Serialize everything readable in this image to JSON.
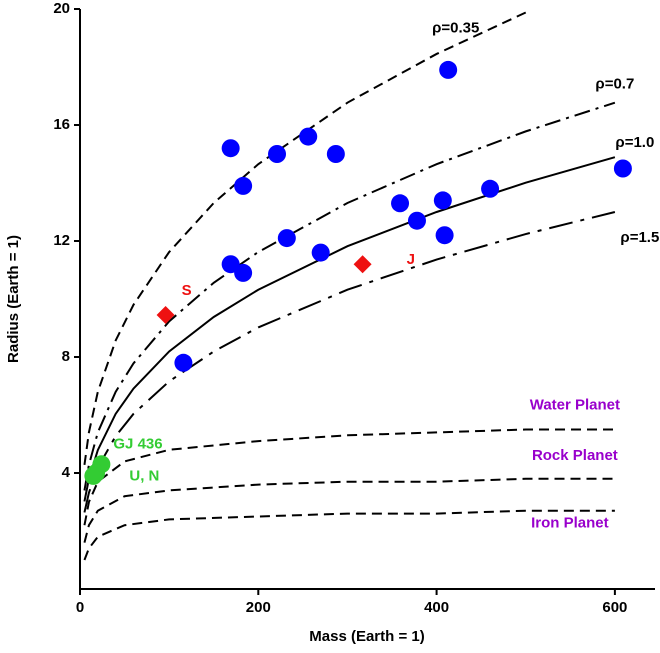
{
  "chart_data": {
    "type": "scatter",
    "xlabel": "Mass (Earth = 1)",
    "ylabel": "Radius (Earth = 1)",
    "xlim": [
      0,
      645
    ],
    "ylim": [
      0,
      20
    ],
    "xticks": [
      0,
      200,
      400,
      600
    ],
    "yticks": [
      4,
      8,
      12,
      16,
      20
    ],
    "lines": [
      {
        "name": "ρ=0.35",
        "color": "#000000",
        "label_color": "#000000",
        "style": "dashed",
        "x": [
          5,
          10,
          20,
          40,
          60,
          100,
          150,
          200,
          300,
          400,
          500
        ],
        "values": [
          4.28,
          5.4,
          6.8,
          8.57,
          9.8,
          11.62,
          13.31,
          14.65,
          16.77,
          18.45,
          19.88
        ]
      },
      {
        "name": "ρ=0.7",
        "color": "#000000",
        "label_color": "#000000",
        "style": "dashdot",
        "x": [
          5,
          10,
          20,
          40,
          60,
          100,
          150,
          200,
          300,
          400,
          500,
          600
        ],
        "values": [
          3.4,
          4.28,
          5.4,
          6.8,
          7.78,
          9.23,
          10.56,
          11.62,
          13.31,
          14.65,
          15.78,
          16.77
        ]
      },
      {
        "name": "ρ=1.0",
        "color": "#000000",
        "label_color": "#000000",
        "style": "solid",
        "x": [
          5,
          10,
          20,
          40,
          60,
          100,
          150,
          200,
          300,
          400,
          500,
          600
        ],
        "values": [
          3.02,
          3.8,
          4.79,
          6.04,
          6.91,
          8.19,
          9.38,
          10.32,
          11.82,
          13.0,
          14.01,
          14.89
        ]
      },
      {
        "name": "ρ=1.5",
        "color": "#000000",
        "label_color": "#000000",
        "style": "longdashdot",
        "x": [
          5,
          10,
          20,
          40,
          60,
          100,
          150,
          200,
          300,
          400,
          500,
          600
        ],
        "values": [
          2.64,
          3.32,
          4.19,
          5.27,
          6.04,
          7.16,
          8.19,
          9.02,
          10.32,
          11.36,
          12.24,
          13.0
        ]
      },
      {
        "name": "Water Planet",
        "color": "#000000",
        "label_color": "#9900cc",
        "style": "dashed",
        "x": [
          5,
          10,
          20,
          50,
          100,
          200,
          300,
          400,
          500,
          600
        ],
        "values": [
          2.2,
          3.0,
          3.7,
          4.4,
          4.8,
          5.1,
          5.3,
          5.4,
          5.5,
          5.5
        ]
      },
      {
        "name": "Rock Planet",
        "color": "#000000",
        "label_color": "#9900cc",
        "style": "dashed",
        "x": [
          5,
          10,
          20,
          50,
          100,
          200,
          300,
          400,
          500,
          600
        ],
        "values": [
          1.6,
          2.2,
          2.7,
          3.2,
          3.4,
          3.6,
          3.7,
          3.7,
          3.8,
          3.8
        ]
      },
      {
        "name": "Iron Planet",
        "color": "#000000",
        "label_color": "#9900cc",
        "style": "dashed",
        "x": [
          5,
          10,
          20,
          50,
          100,
          200,
          300,
          400,
          500,
          600
        ],
        "values": [
          1.0,
          1.4,
          1.8,
          2.2,
          2.4,
          2.5,
          2.6,
          2.6,
          2.7,
          2.7
        ]
      }
    ],
    "series": [
      {
        "color": "#0000ff",
        "marker": "circle",
        "x": [
          413,
          169,
          256,
          221,
          287,
          183,
          609,
          460,
          359,
          407,
          378,
          409,
          232,
          270,
          169,
          183,
          116
        ],
        "values": [
          17.9,
          15.2,
          15.6,
          15.0,
          15.0,
          13.9,
          14.5,
          13.8,
          13.3,
          13.4,
          12.7,
          12.2,
          12.1,
          11.6,
          11.2,
          10.9,
          7.8
        ]
      },
      {
        "color": "#ee1111",
        "marker": "diamond",
        "x": [
          96,
          317
        ],
        "values": [
          9.45,
          11.2
        ],
        "labels": [
          "S",
          "J"
        ]
      },
      {
        "color": "#33cc33",
        "marker": "circle",
        "x": [
          24,
          18,
          15
        ],
        "values": [
          4.3,
          4.0,
          3.9
        ],
        "annotations": [
          "GJ 436",
          "U, N"
        ]
      }
    ]
  }
}
